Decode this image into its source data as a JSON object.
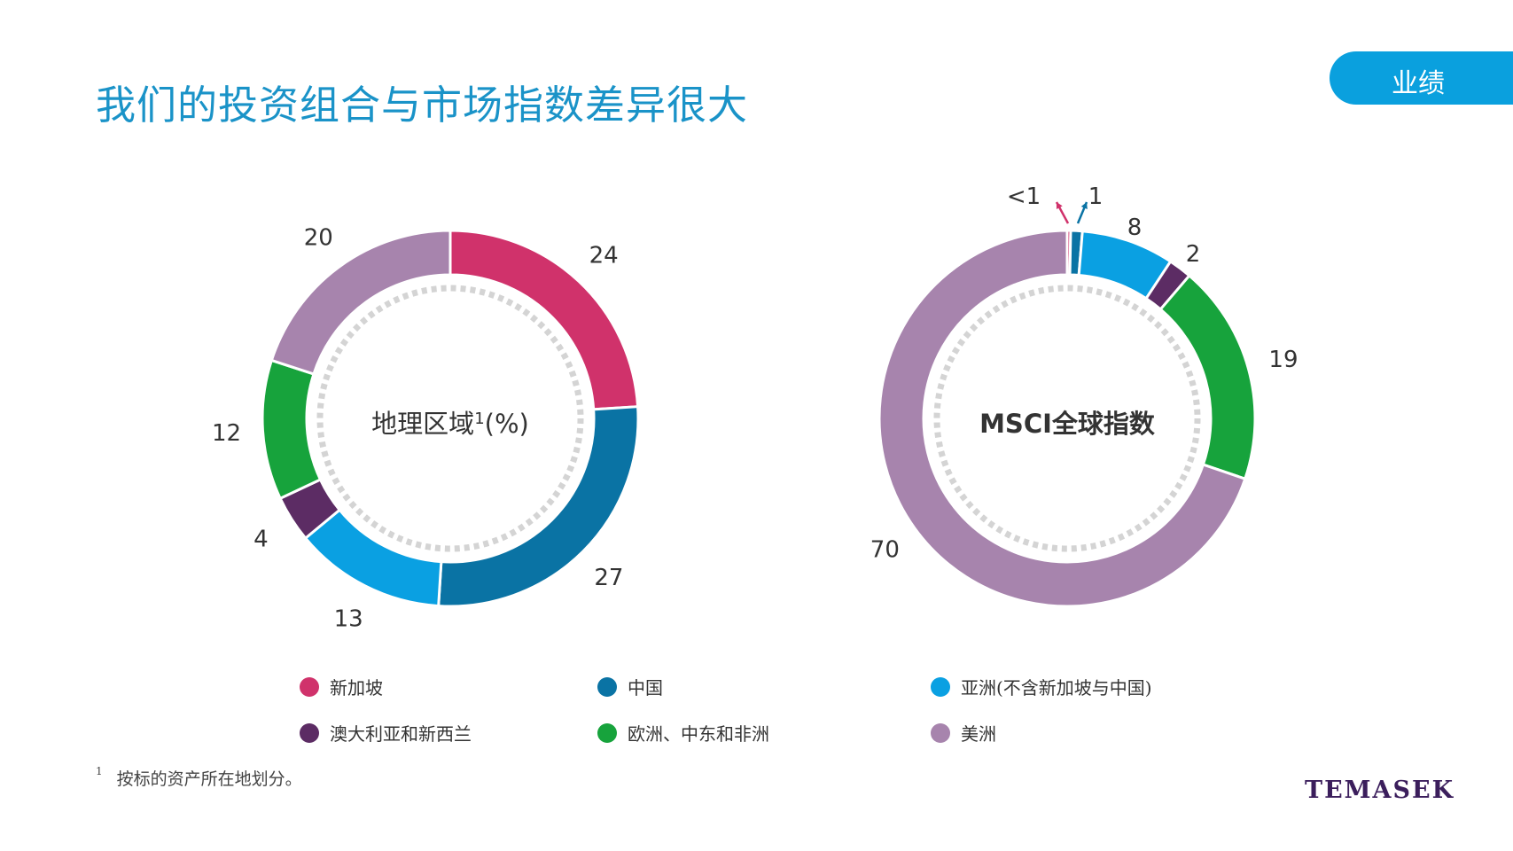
{
  "page": {
    "title": "我们的投资组合与市场指数差异很大",
    "section_tab": "业绩",
    "footnote_marker": "1",
    "footnote": "按标的资产所在地划分。",
    "logo": "TEMASEK"
  },
  "colors": {
    "title": "#1a93c8",
    "tab": "#0aa0de",
    "singapore": "#d0326b",
    "china": "#0a73a4",
    "asia_ex": "#0aa0e2",
    "australia_nz": "#5c2c64",
    "emea": "#17a33c",
    "americas": "#a784ad"
  },
  "legend": [
    {
      "label": "新加坡",
      "color": "#d0326b"
    },
    {
      "label": "中国",
      "color": "#0a73a4"
    },
    {
      "label": "亚洲(不含新加坡与中国)",
      "color": "#0aa0e2"
    },
    {
      "label": "澳大利亚和新西兰",
      "color": "#5c2c64"
    },
    {
      "label": "欧洲、中东和非洲",
      "color": "#17a33c"
    },
    {
      "label": "美洲",
      "color": "#a784ad"
    }
  ],
  "chart_data": [
    {
      "type": "pie",
      "variant": "donut",
      "center_label": "地理区域",
      "center_label_sup": "1",
      "center_label_suffix": "(%)",
      "categories": [
        "新加坡",
        "中国",
        "亚洲(不含新加坡与中国)",
        "澳大利亚和新西兰",
        "欧洲、中东和非洲",
        "美洲"
      ],
      "values": [
        24,
        27,
        13,
        4,
        12,
        20
      ],
      "data_labels": [
        "24",
        "27",
        "13",
        "4",
        "12",
        "20"
      ]
    },
    {
      "type": "pie",
      "variant": "donut",
      "center_label": "MSCI全球指数",
      "categories": [
        "新加坡",
        "中国",
        "亚洲(不含新加坡与中国)",
        "澳大利亚和新西兰",
        "欧洲、中东和非洲",
        "美洲"
      ],
      "values": [
        0.3,
        1,
        8,
        2,
        19,
        70
      ],
      "data_labels": [
        "<1",
        "1",
        "8",
        "2",
        "19",
        "70"
      ]
    }
  ]
}
